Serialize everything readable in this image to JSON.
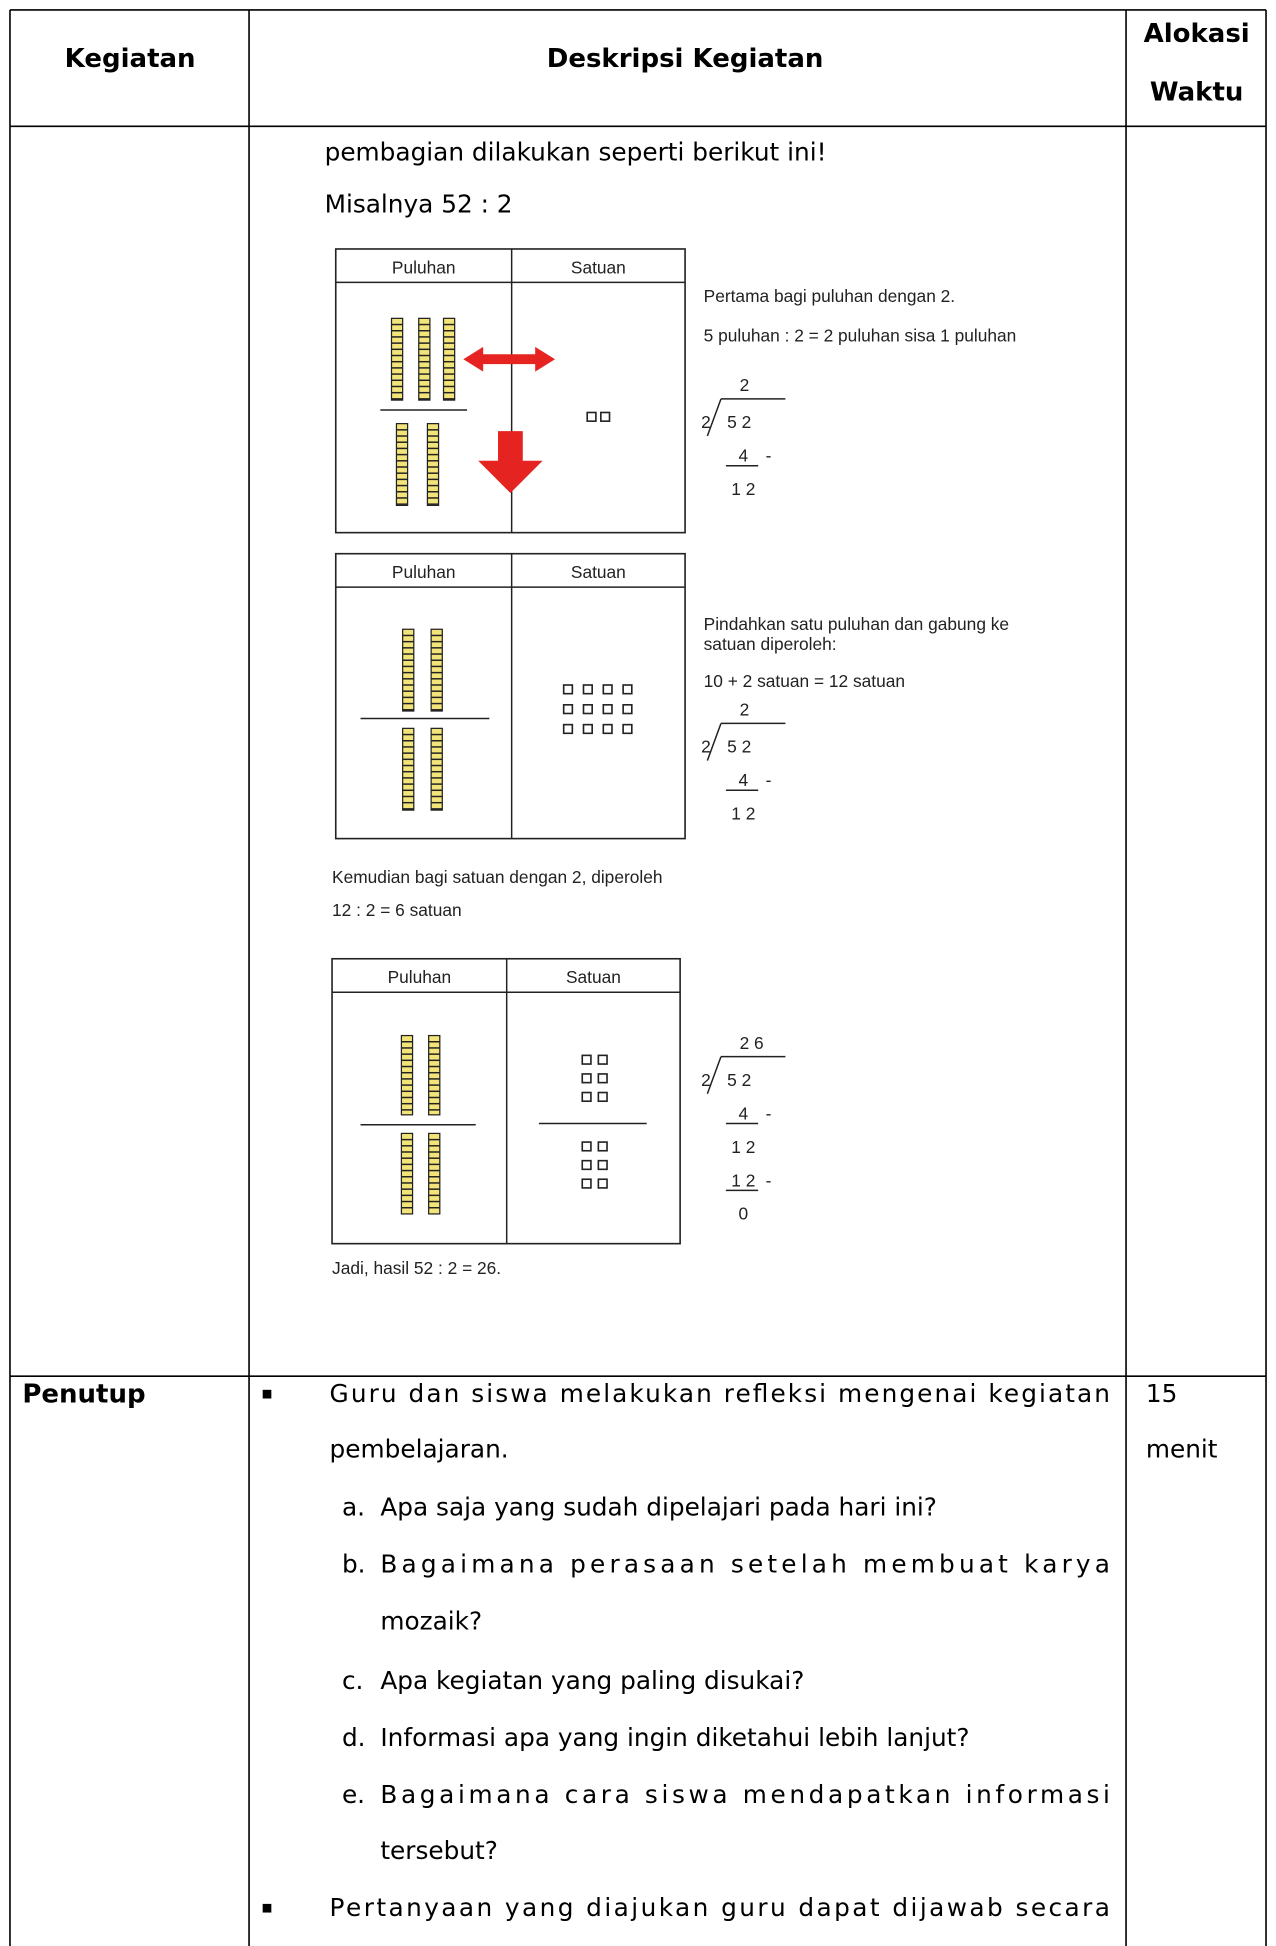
{
  "header": {
    "kegiatan": "Kegiatan",
    "deskripsi": "Deskripsi Kegiatan",
    "alokasi": [
      "Alokasi",
      "Waktu"
    ]
  },
  "rows": [
    {
      "deskripsi": {
        "lines": [
          "pembagian dilakukan seperti berikut ini!",
          "Misalnya 52 : 2"
        ],
        "figure": {
          "panels": [
            {
              "headers": [
                "Puluhan",
                "Satuan"
              ],
              "notes": [
                "Pertama bagi puluhan dengan 2.",
                "5 puluhan : 2 = 2 puluhan sisa 1 puluhan"
              ],
              "division": {
                "quotient": "2",
                "divisor": "2",
                "dividend": "5 2",
                "steps": [
                  {
                    "value": "4",
                    "sign": "-"
                  },
                  {
                    "value": "1 2"
                  }
                ]
              }
            },
            {
              "headers": [
                "Puluhan",
                "Satuan"
              ],
              "notes": [
                "Pindahkan satu puluhan dan gabung ke",
                "satuan diperoleh:",
                "10 + 2 satuan = 12 satuan"
              ],
              "division": {
                "quotient": "2",
                "divisor": "2",
                "dividend": "5 2",
                "steps": [
                  {
                    "value": "4",
                    "sign": "-"
                  },
                  {
                    "value": "1 2"
                  }
                ]
              }
            },
            {
              "headers": [
                "Puluhan",
                "Satuan"
              ],
              "notes": [],
              "division": {
                "quotient": "2 6",
                "divisor": "2",
                "dividend": "5 2",
                "steps": [
                  {
                    "value": "4",
                    "sign": "-"
                  },
                  {
                    "value": "1 2"
                  },
                  {
                    "value": "1 2",
                    "sign": "-"
                  },
                  {
                    "value": "0"
                  }
                ]
              }
            }
          ],
          "middle_text": [
            "Kemudian bagi satuan dengan 2, diperoleh",
            "12 : 2 = 6 satuan"
          ],
          "conclusion": "Jadi, hasil 52 : 2 = 26."
        }
      }
    },
    {
      "kegiatan": "Penutup",
      "waktu": [
        "15",
        "menit"
      ],
      "items": [
        {
          "lines": [
            "Guru dan siswa melakukan refleksi mengenai kegiatan",
            "pembelajaran."
          ],
          "subitems": [
            {
              "label": "a.",
              "lines": [
                "Apa saja yang sudah dipelajari pada hari ini?"
              ]
            },
            {
              "label": "b.",
              "lines": [
                "Bagaimana perasaan setelah membuat karya",
                "mozaik?"
              ]
            },
            {
              "label": "c.",
              "lines": [
                "Apa kegiatan yang paling disukai?"
              ]
            },
            {
              "label": "d.",
              "lines": [
                "Informasi apa yang ingin diketahui lebih lanjut?"
              ]
            },
            {
              "label": "e.",
              "lines": [
                "Bagaimana cara siswa mendapatkan informasi",
                "tersebut?"
              ]
            }
          ]
        },
        {
          "lines": [
            "Pertanyaan yang diajukan guru dapat dijawab secara"
          ]
        }
      ]
    }
  ]
}
